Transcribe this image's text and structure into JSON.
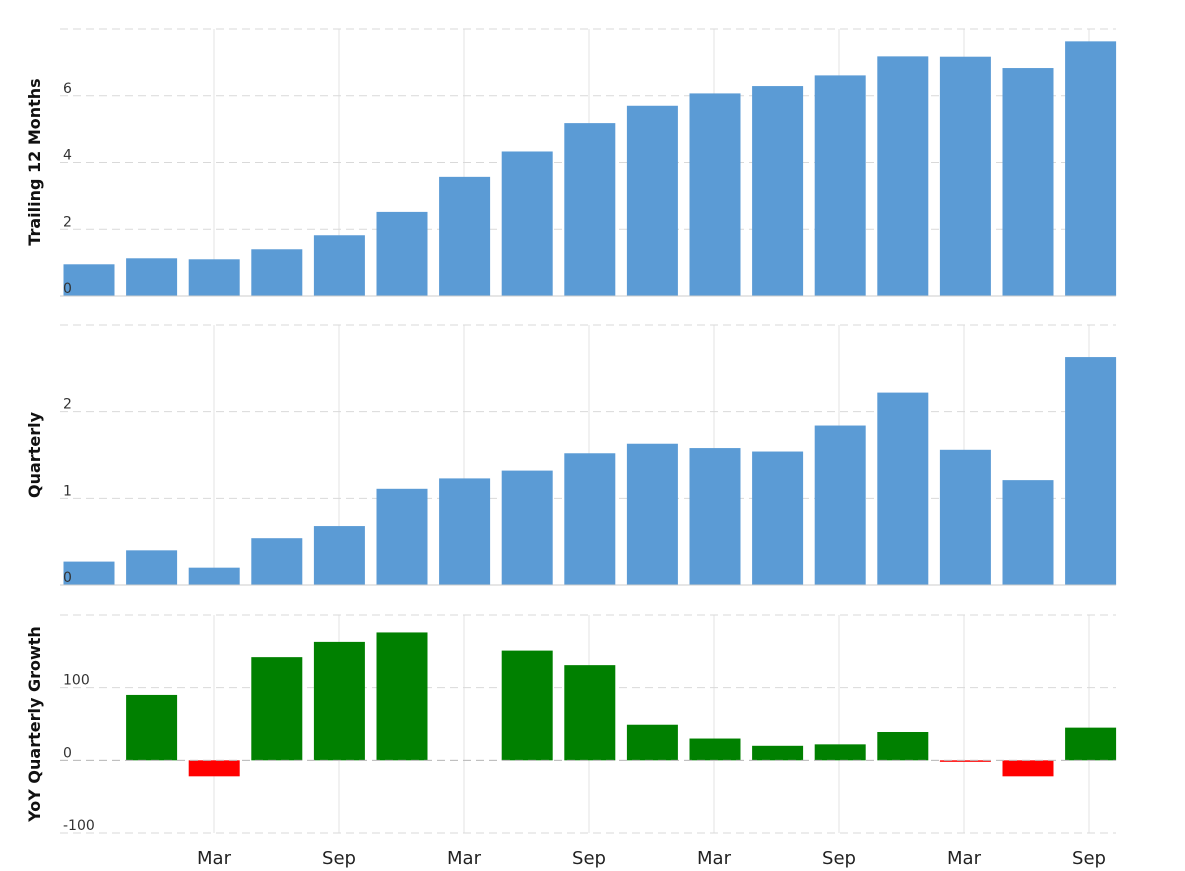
{
  "chart_data": [
    {
      "type": "bar",
      "ylabel": "Trailing 12 Months",
      "ylim": [
        0,
        8
      ],
      "yticks": [
        "0",
        "2",
        "4",
        "6"
      ],
      "ytick_values": [
        0,
        2,
        4,
        6
      ],
      "grid": true,
      "color": "#5b9bd5",
      "values": [
        0.95,
        1.13,
        1.1,
        1.4,
        1.82,
        2.52,
        3.57,
        4.33,
        5.18,
        5.7,
        6.07,
        6.29,
        6.61,
        7.18,
        7.17,
        6.83,
        7.63
      ]
    },
    {
      "type": "bar",
      "ylabel": "Quarterly",
      "ylim": [
        0,
        3
      ],
      "yticks": [
        "0",
        "1",
        "2"
      ],
      "ytick_values": [
        0,
        1,
        2
      ],
      "grid": true,
      "color": "#5b9bd5",
      "values": [
        0.27,
        0.4,
        0.2,
        0.54,
        0.68,
        1.11,
        1.23,
        1.32,
        1.52,
        1.63,
        1.58,
        1.54,
        1.84,
        2.22,
        1.56,
        1.21,
        2.63
      ]
    },
    {
      "type": "bar",
      "ylabel": "YoY Quarterly Growth",
      "ylim": [
        -100,
        200
      ],
      "yticks": [
        "-100",
        "0",
        "100"
      ],
      "ytick_values": [
        -100,
        0,
        100
      ],
      "grid": true,
      "positive_color": "#008000",
      "negative_color": "#ff0000",
      "values": [
        null,
        90,
        -22,
        142,
        163,
        176,
        null,
        151,
        131,
        49,
        30,
        20,
        22,
        39,
        -2,
        -22,
        45
      ]
    }
  ],
  "x_axis": {
    "tick_labels": [
      "Mar",
      "Sep",
      "Mar",
      "Sep",
      "Mar",
      "Sep",
      "Mar",
      "Sep"
    ]
  }
}
